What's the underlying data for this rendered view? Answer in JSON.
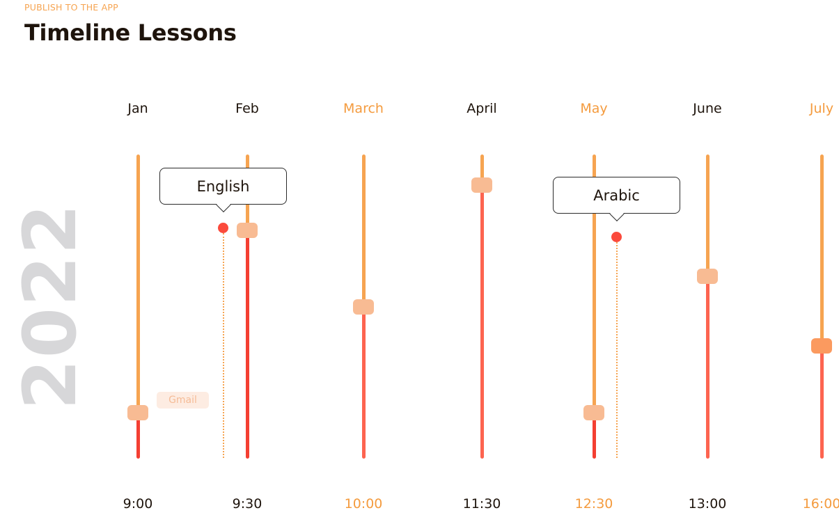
{
  "header": {
    "eyebrow": "PUBLISH TO THE APP",
    "title": "Timeline Lessons"
  },
  "year": "2022",
  "colors": {
    "accent": "#f49b3e",
    "track_top": "#f6a451",
    "track_bottom": "#fb4a3c",
    "thumb": "#f8bb93",
    "thumb_active": "#fb9a5f",
    "year_watermark": "#d7d7d9"
  },
  "columns": [
    {
      "month": "Jan",
      "time": "9:00",
      "accent": false,
      "level": 0.15,
      "bottom_color": "#f43f32"
    },
    {
      "month": "Feb",
      "time": "9:30",
      "accent": false,
      "level": 0.75,
      "bottom_color": "#f43f32"
    },
    {
      "month": "March",
      "time": "10:00",
      "accent": true,
      "level": 0.5,
      "bottom_color": "#fd6450"
    },
    {
      "month": "April",
      "time": "11:30",
      "accent": false,
      "level": 0.9,
      "bottom_color": "#fd6450"
    },
    {
      "month": "May",
      "time": "12:30",
      "accent": true,
      "level": 0.15,
      "bottom_color": "#f43f32"
    },
    {
      "month": "June",
      "time": "13:00",
      "accent": false,
      "level": 0.6,
      "bottom_color": "#fd6450"
    },
    {
      "month": "July",
      "time": "16:00",
      "accent": true,
      "level": 0.37,
      "bottom_color": "#fd6450",
      "active": true
    }
  ],
  "callouts": [
    {
      "label": "English"
    },
    {
      "label": "Arabic"
    }
  ],
  "chip": {
    "label": "Gmail"
  }
}
